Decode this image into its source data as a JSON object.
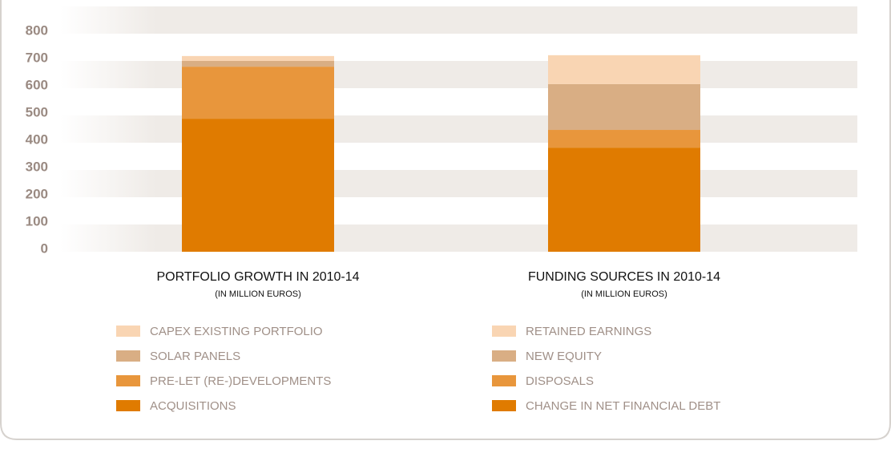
{
  "chart_data": {
    "type": "stacked_bar",
    "ylim": [
      0,
      900
    ],
    "yticks": [
      0,
      100,
      200,
      300,
      400,
      500,
      600,
      700,
      800
    ],
    "grid": true,
    "groups": [
      {
        "title": "PORTFOLIO GROWTH IN 2010-14",
        "subtitle": "(IN MILLION EUROS)",
        "series": [
          {
            "name": "ACQUISITIONS",
            "color": "#e07b00",
            "values": [
              488
            ]
          },
          {
            "name": "PRE-LET (RE-)DEVELOPMENTS",
            "color": "#e8963c",
            "values": [
              191
            ]
          },
          {
            "name": "SOLAR PANELS",
            "color": "#d9ae84",
            "values": [
              21
            ]
          },
          {
            "name": "CAPEX EXISTING PORTFOLIO",
            "color": "#f9d5b3",
            "values": [
              18
            ]
          }
        ]
      },
      {
        "title": "FUNDING SOURCES IN 2010-14",
        "subtitle": "(IN MILLION EUROS)",
        "series": [
          {
            "name": "CHANGE IN NET FINANCIAL DEBT",
            "color": "#e07b00",
            "values": [
              382
            ]
          },
          {
            "name": "DISPOSALS",
            "color": "#e8963c",
            "values": [
              65
            ]
          },
          {
            "name": "NEW EQUITY",
            "color": "#d9ae84",
            "values": [
              168
            ]
          },
          {
            "name": "RETAINED EARNINGS",
            "color": "#f9d5b3",
            "values": [
              106
            ]
          }
        ]
      }
    ]
  }
}
